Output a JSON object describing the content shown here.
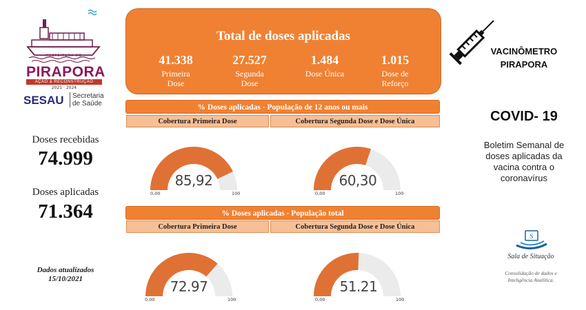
{
  "header": {
    "city_small": "PREFEITURA DE",
    "city": "PIRAPORA",
    "city_tagline": "AÇÃO & RECONSTRUÇÃO",
    "city_years": "2021 · 2024",
    "sesau": "SESAU",
    "sesau_sub_1": "Secretaria",
    "sesau_sub_2": "de Saúde"
  },
  "left": {
    "received_label": "Doses recebidas",
    "received_value": "74.999",
    "applied_label": "Doses aplicadas",
    "applied_value": "71.364",
    "updated_line1": "Dados atualizados",
    "updated_line2": "15/10/2021"
  },
  "total": {
    "title": "Total de doses aplicadas",
    "items": [
      {
        "value": "41.338",
        "label1": "Primeira",
        "label2": "Dose"
      },
      {
        "value": "27.527",
        "label1": "Segunda",
        "label2": "Dose"
      },
      {
        "value": "1.484",
        "label1": "Dose Única",
        "label2": ""
      },
      {
        "value": "1.015",
        "label1": "Dose de",
        "label2": "Reforço"
      }
    ]
  },
  "section1": {
    "title": "% Doses aplicadas  - População de 12 anos ou mais",
    "sub_left": "Cobertura Primeira Dose",
    "sub_right": "Cobertura Segunda Dose e Dose Única"
  },
  "section2": {
    "title": "% Doses aplicadas - População total",
    "sub_left": "Cobertura Primeira Dose",
    "sub_right": "Cobertura Segunda Dose e Dose Única"
  },
  "right": {
    "vacc_line1": "VACINÔMETRO",
    "vacc_line2": "PIRAPORA",
    "covid": "COVID- 19",
    "bulletin_1": "Boletim Semanal de",
    "bulletin_2": "doses aplicadas da",
    "bulletin_3": "vacina contra o",
    "bulletin_4": "coronavírus",
    "sala_name": "Sala de Situação",
    "sala_sub_1": "Consolidação de dados e",
    "sala_sub_2": "Inteligência Analítica."
  },
  "colors": {
    "orange": "#f08133",
    "gauge_fill": "#e07134",
    "gauge_track": "#ebebeb"
  },
  "chart_data": [
    {
      "type": "gauge",
      "value": 85.92,
      "value_label": "85,92",
      "min": 0,
      "max": 100,
      "min_label": "0,00",
      "max_label": "100"
    },
    {
      "type": "gauge",
      "value": 60.3,
      "value_label": "60,30",
      "min": 0,
      "max": 100,
      "min_label": "0,00",
      "max_label": "100"
    },
    {
      "type": "gauge",
      "value": 72.97,
      "value_label": "72.97",
      "min": 0,
      "max": 100,
      "min_label": "0,00",
      "max_label": "100"
    },
    {
      "type": "gauge",
      "value": 51.21,
      "value_label": "51.21",
      "min": 0,
      "max": 100,
      "min_label": "0,00",
      "max_label": "100"
    }
  ]
}
